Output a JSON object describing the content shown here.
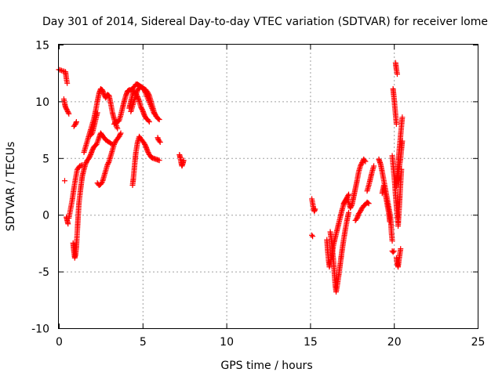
{
  "chart_data": {
    "type": "scatter",
    "title": "Day 301 of 2014, Sidereal Day-to-day VTEC variation (SDTVAR) for receiver lome",
    "xlabel": "GPS time / hours",
    "ylabel": "SDTVAR / TECUs",
    "xlim": [
      0,
      25
    ],
    "ylim": [
      -10,
      15
    ],
    "xticks": [
      0,
      5,
      10,
      15,
      20,
      25
    ],
    "yticks": [
      -10,
      -5,
      0,
      5,
      10,
      15
    ],
    "xtick_labels": [
      "0",
      "5",
      "10",
      "15",
      "20",
      "25"
    ],
    "ytick_labels": [
      "-10",
      "-5",
      "0",
      "5",
      "10",
      "15"
    ],
    "grid": true,
    "marker": "+",
    "color": "#ff0000",
    "segments": [
      [
        [
          0.0,
          12.8
        ],
        [
          0.4,
          12.6
        ],
        [
          0.45,
          12.0
        ],
        [
          0.5,
          11.6
        ]
      ],
      [
        [
          0.3,
          10.2
        ],
        [
          0.35,
          9.8
        ],
        [
          0.4,
          9.5
        ],
        [
          0.5,
          9.2
        ],
        [
          0.6,
          8.9
        ]
      ],
      [
        [
          0.35,
          3.0
        ]
      ],
      [
        [
          0.45,
          -0.2
        ],
        [
          0.5,
          -0.5
        ],
        [
          0.55,
          -0.8
        ]
      ],
      [
        [
          0.6,
          -0.3
        ],
        [
          0.7,
          0.5
        ],
        [
          0.8,
          1.3
        ],
        [
          0.9,
          2.3
        ],
        [
          1.0,
          3.2
        ],
        [
          1.1,
          4.0
        ],
        [
          1.25,
          4.3
        ],
        [
          1.4,
          4.4
        ]
      ],
      [
        [
          0.9,
          7.8
        ],
        [
          1.0,
          8.0
        ],
        [
          1.05,
          8.2
        ]
      ],
      [
        [
          0.85,
          -2.5
        ],
        [
          0.9,
          -3.2
        ],
        [
          0.95,
          -3.8
        ],
        [
          1.0,
          -3.5
        ],
        [
          1.05,
          -2.8
        ],
        [
          1.1,
          -1.5
        ],
        [
          1.15,
          -0.2
        ],
        [
          1.2,
          1.0
        ],
        [
          1.3,
          2.3
        ],
        [
          1.4,
          3.4
        ],
        [
          1.5,
          4.0
        ],
        [
          1.6,
          4.5
        ],
        [
          1.7,
          4.8
        ],
        [
          1.8,
          5.0
        ],
        [
          1.9,
          5.3
        ],
        [
          2.0,
          5.7
        ],
        [
          2.1,
          6.0
        ],
        [
          2.25,
          6.2
        ],
        [
          2.4,
          6.8
        ],
        [
          2.5,
          7.2
        ],
        [
          2.6,
          7.0
        ],
        [
          2.8,
          6.6
        ],
        [
          3.0,
          6.4
        ],
        [
          3.2,
          6.2
        ]
      ],
      [
        [
          1.5,
          5.5
        ],
        [
          1.6,
          6.0
        ],
        [
          1.7,
          6.5
        ],
        [
          1.8,
          7.0
        ],
        [
          1.9,
          7.5
        ],
        [
          2.0,
          8.0
        ],
        [
          2.1,
          8.5
        ],
        [
          2.2,
          9.2
        ],
        [
          2.3,
          10.0
        ],
        [
          2.4,
          10.7
        ],
        [
          2.5,
          11.1
        ],
        [
          2.6,
          11.0
        ],
        [
          2.7,
          10.6
        ],
        [
          2.8,
          10.3
        ],
        [
          2.9,
          10.6
        ],
        [
          3.0,
          10.5
        ],
        [
          3.1,
          9.8
        ],
        [
          3.2,
          9.0
        ],
        [
          3.35,
          8.2
        ],
        [
          3.5,
          7.6
        ]
      ],
      [
        [
          1.9,
          7.0
        ],
        [
          2.0,
          7.2
        ],
        [
          2.1,
          7.8
        ],
        [
          2.2,
          8.4
        ],
        [
          2.3,
          9.0
        ]
      ],
      [
        [
          2.3,
          2.8
        ],
        [
          2.4,
          2.6
        ],
        [
          2.5,
          2.7
        ],
        [
          2.6,
          2.9
        ],
        [
          2.7,
          3.4
        ],
        [
          2.8,
          3.9
        ],
        [
          2.9,
          4.4
        ],
        [
          3.0,
          4.7
        ],
        [
          3.1,
          5.2
        ],
        [
          3.2,
          5.7
        ],
        [
          3.3,
          6.2
        ],
        [
          3.4,
          6.5
        ],
        [
          3.5,
          6.7
        ],
        [
          3.6,
          6.9
        ],
        [
          3.7,
          7.2
        ]
      ],
      [
        [
          3.3,
          8.0
        ],
        [
          3.4,
          8.2
        ],
        [
          3.5,
          8.2
        ],
        [
          3.6,
          8.3
        ],
        [
          3.7,
          8.8
        ],
        [
          3.8,
          9.4
        ],
        [
          3.9,
          10.0
        ],
        [
          4.0,
          10.5
        ],
        [
          4.1,
          10.9
        ],
        [
          4.2,
          11.0
        ],
        [
          4.3,
          11.0
        ],
        [
          4.4,
          11.1
        ],
        [
          4.5,
          11.3
        ],
        [
          4.6,
          11.5
        ],
        [
          4.7,
          11.5
        ],
        [
          4.8,
          11.4
        ],
        [
          4.9,
          11.3
        ],
        [
          5.0,
          11.2
        ],
        [
          5.1,
          11.1
        ],
        [
          5.2,
          11.0
        ],
        [
          5.3,
          10.8
        ],
        [
          5.4,
          10.5
        ],
        [
          5.5,
          10.0
        ],
        [
          5.6,
          9.5
        ],
        [
          5.7,
          9.0
        ],
        [
          5.8,
          8.7
        ],
        [
          5.9,
          8.5
        ],
        [
          6.0,
          8.4
        ]
      ],
      [
        [
          4.2,
          9.4
        ],
        [
          4.3,
          10.0
        ],
        [
          4.4,
          10.6
        ],
        [
          4.5,
          10.9
        ],
        [
          4.6,
          10.7
        ],
        [
          4.7,
          10.4
        ],
        [
          4.8,
          10.0
        ],
        [
          4.9,
          9.5
        ],
        [
          5.0,
          9.2
        ],
        [
          5.1,
          8.8
        ],
        [
          5.2,
          8.5
        ],
        [
          5.3,
          8.4
        ],
        [
          5.4,
          8.2
        ]
      ],
      [
        [
          4.3,
          9.1
        ],
        [
          4.5,
          10.1
        ],
        [
          4.7,
          11.0
        ],
        [
          4.9,
          11.3
        ],
        [
          5.1,
          11.0
        ],
        [
          5.3,
          10.3
        ],
        [
          5.5,
          9.6
        ],
        [
          5.7,
          8.9
        ]
      ],
      [
        [
          4.4,
          2.6
        ],
        [
          4.45,
          3.2
        ],
        [
          4.5,
          4.0
        ],
        [
          4.55,
          4.8
        ],
        [
          4.6,
          5.5
        ],
        [
          4.7,
          6.4
        ],
        [
          4.8,
          6.9
        ],
        [
          4.9,
          6.7
        ],
        [
          5.0,
          6.5
        ],
        [
          5.1,
          6.3
        ],
        [
          5.2,
          6.0
        ],
        [
          5.3,
          5.6
        ],
        [
          5.4,
          5.3
        ],
        [
          5.5,
          5.1
        ],
        [
          5.6,
          5.0
        ],
        [
          5.8,
          4.9
        ],
        [
          6.0,
          4.8
        ]
      ],
      [
        [
          5.9,
          6.8
        ],
        [
          5.95,
          6.6
        ],
        [
          6.0,
          6.5
        ],
        [
          6.05,
          6.4
        ]
      ],
      [
        [
          7.2,
          5.3
        ],
        [
          7.25,
          5.0
        ],
        [
          7.3,
          4.6
        ],
        [
          7.35,
          4.3
        ],
        [
          7.4,
          4.5
        ],
        [
          7.45,
          4.8
        ]
      ],
      [
        [
          15.1,
          1.4
        ],
        [
          15.15,
          1.0
        ],
        [
          15.2,
          0.6
        ],
        [
          15.25,
          0.3
        ],
        [
          15.3,
          0.5
        ]
      ],
      [
        [
          15.1,
          -1.8
        ],
        [
          15.15,
          -1.9
        ]
      ],
      [
        [
          16.0,
          -2.2
        ],
        [
          16.05,
          -3.2
        ],
        [
          16.1,
          -4.0
        ],
        [
          16.15,
          -4.6
        ],
        [
          16.2,
          -4.2
        ],
        [
          16.3,
          -3.5
        ],
        [
          16.4,
          -2.6
        ],
        [
          16.5,
          -2.0
        ],
        [
          16.6,
          -1.4
        ],
        [
          16.7,
          -0.8
        ],
        [
          16.8,
          -0.2
        ],
        [
          16.9,
          0.4
        ],
        [
          17.0,
          0.9
        ],
        [
          17.1,
          1.2
        ],
        [
          17.2,
          1.5
        ],
        [
          17.3,
          1.8
        ]
      ],
      [
        [
          16.2,
          -1.5
        ],
        [
          16.3,
          -2.5
        ],
        [
          16.35,
          -3.4
        ],
        [
          16.4,
          -4.2
        ],
        [
          16.45,
          -5.2
        ],
        [
          16.5,
          -6.2
        ],
        [
          16.55,
          -6.8
        ],
        [
          16.6,
          -6.4
        ],
        [
          16.7,
          -5.4
        ],
        [
          16.8,
          -4.3
        ],
        [
          16.9,
          -3.2
        ],
        [
          17.0,
          -2.2
        ],
        [
          17.1,
          -1.3
        ],
        [
          17.2,
          -0.5
        ],
        [
          17.3,
          0.2
        ]
      ],
      [
        [
          17.0,
          1.0
        ],
        [
          17.2,
          1.5
        ],
        [
          17.4,
          0.6
        ],
        [
          17.5,
          0.9
        ],
        [
          17.6,
          1.6
        ],
        [
          17.7,
          2.3
        ],
        [
          17.8,
          3.0
        ],
        [
          17.9,
          3.8
        ],
        [
          18.0,
          4.3
        ],
        [
          18.1,
          4.6
        ],
        [
          18.2,
          4.9
        ],
        [
          18.3,
          4.7
        ]
      ],
      [
        [
          17.7,
          -0.5
        ],
        [
          17.8,
          -0.3
        ],
        [
          17.9,
          0.1
        ],
        [
          18.0,
          0.3
        ],
        [
          18.1,
          0.6
        ],
        [
          18.2,
          0.8
        ],
        [
          18.3,
          0.9
        ],
        [
          18.4,
          1.1
        ],
        [
          18.5,
          1.0
        ]
      ],
      [
        [
          18.4,
          2.1
        ],
        [
          18.5,
          2.6
        ],
        [
          18.6,
          3.2
        ],
        [
          18.7,
          3.8
        ],
        [
          18.8,
          4.3
        ]
      ],
      [
        [
          19.1,
          4.9
        ],
        [
          19.2,
          4.5
        ],
        [
          19.3,
          3.8
        ],
        [
          19.4,
          3.0
        ],
        [
          19.5,
          2.2
        ],
        [
          19.6,
          1.4
        ],
        [
          19.7,
          0.6
        ],
        [
          19.8,
          -0.2
        ],
        [
          19.85,
          -1.5
        ],
        [
          19.9,
          -2.3
        ]
      ],
      [
        [
          19.3,
          1.9
        ],
        [
          19.4,
          2.6
        ],
        [
          19.5,
          1.8
        ],
        [
          19.6,
          0.9
        ],
        [
          19.7,
          0.1
        ],
        [
          19.75,
          -0.6
        ]
      ],
      [
        [
          19.9,
          -3.2
        ],
        [
          19.95,
          -3.3
        ],
        [
          20.0,
          -3.2
        ]
      ],
      [
        [
          19.9,
          5.2
        ],
        [
          19.95,
          4.4
        ],
        [
          20.0,
          3.6
        ],
        [
          20.05,
          2.8
        ],
        [
          20.1,
          1.7
        ],
        [
          20.15,
          0.8
        ],
        [
          20.2,
          0.0
        ],
        [
          20.25,
          -0.7
        ]
      ],
      [
        [
          19.95,
          11.1
        ],
        [
          20.0,
          10.4
        ],
        [
          20.05,
          9.6
        ],
        [
          20.1,
          8.8
        ],
        [
          20.15,
          8.0
        ]
      ],
      [
        [
          20.1,
          13.4
        ],
        [
          20.15,
          12.8
        ],
        [
          20.2,
          12.4
        ]
      ],
      [
        [
          20.15,
          -3.8
        ],
        [
          20.2,
          -4.3
        ],
        [
          20.25,
          -4.6
        ],
        [
          20.3,
          -4.0
        ],
        [
          20.35,
          -3.5
        ],
        [
          20.4,
          -3.0
        ]
      ],
      [
        [
          20.15,
          2.5
        ],
        [
          20.2,
          3.5
        ],
        [
          20.25,
          4.5
        ],
        [
          20.3,
          5.4
        ],
        [
          20.35,
          6.2
        ],
        [
          20.4,
          7.0
        ],
        [
          20.45,
          7.8
        ],
        [
          20.5,
          8.6
        ]
      ],
      [
        [
          20.2,
          3.0
        ],
        [
          20.3,
          4.0
        ],
        [
          20.4,
          5.0
        ],
        [
          20.45,
          5.8
        ],
        [
          20.5,
          6.5
        ]
      ],
      [
        [
          20.25,
          -1.0
        ],
        [
          20.3,
          0.2
        ],
        [
          20.35,
          1.5
        ],
        [
          20.4,
          2.8
        ],
        [
          20.45,
          4.0
        ]
      ]
    ]
  }
}
